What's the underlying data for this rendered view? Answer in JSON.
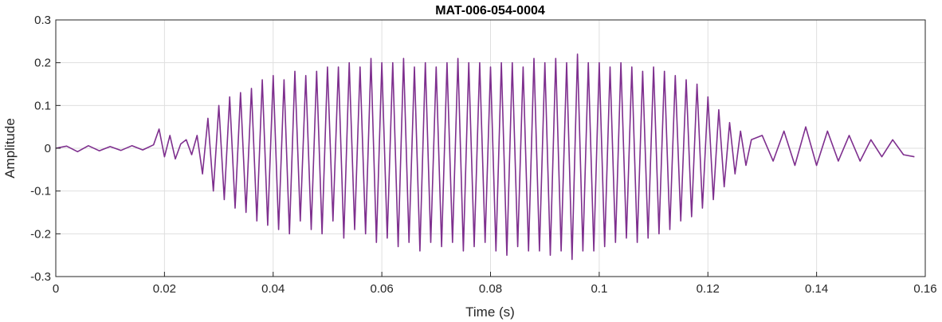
{
  "chart_data": {
    "type": "line",
    "title": "MAT-006-054-0004",
    "xlabel": "Time (s)",
    "ylabel": "Amplitude",
    "xlim": [
      0,
      0.16
    ],
    "ylim": [
      -0.3,
      0.3
    ],
    "x_ticks": [
      0,
      0.02,
      0.04,
      0.06,
      0.08,
      0.1,
      0.12,
      0.14,
      0.16
    ],
    "x_tick_labels": [
      "0",
      "0.02",
      "0.04",
      "0.06",
      "0.08",
      "0.1",
      "0.12",
      "0.14",
      "0.16"
    ],
    "y_ticks": [
      0.3,
      0.2,
      0.1,
      0,
      -0.1,
      -0.2,
      -0.3
    ],
    "y_tick_labels": [
      "0.3",
      "0.2",
      "0.1",
      "0",
      "-0.1",
      "-0.2",
      "-0.3"
    ],
    "grid": true,
    "line_color": "#7E2F8E",
    "series": [
      {
        "x": [
          0,
          0.002,
          0.004,
          0.006,
          0.008,
          0.01,
          0.012,
          0.014,
          0.016,
          0.018,
          0.019,
          0.02,
          0.021,
          0.022,
          0.023,
          0.024,
          0.025,
          0.026,
          0.027,
          0.028,
          0.029,
          0.03,
          0.031,
          0.032,
          0.033,
          0.034,
          0.035,
          0.036,
          0.037,
          0.038,
          0.039,
          0.04,
          0.041,
          0.042,
          0.043,
          0.044,
          0.045,
          0.046,
          0.047,
          0.048,
          0.049,
          0.05,
          0.051,
          0.052,
          0.053,
          0.054,
          0.055,
          0.056,
          0.057,
          0.058,
          0.059,
          0.06,
          0.061,
          0.062,
          0.063,
          0.064,
          0.065,
          0.066,
          0.067,
          0.068,
          0.069,
          0.07,
          0.071,
          0.072,
          0.073,
          0.074,
          0.075,
          0.076,
          0.077,
          0.078,
          0.079,
          0.08,
          0.081,
          0.082,
          0.083,
          0.084,
          0.085,
          0.086,
          0.087,
          0.088,
          0.089,
          0.09,
          0.091,
          0.092,
          0.093,
          0.094,
          0.095,
          0.096,
          0.097,
          0.098,
          0.099,
          0.1,
          0.101,
          0.102,
          0.103,
          0.104,
          0.105,
          0.106,
          0.107,
          0.108,
          0.109,
          0.11,
          0.111,
          0.112,
          0.113,
          0.114,
          0.115,
          0.116,
          0.117,
          0.118,
          0.119,
          0.12,
          0.121,
          0.122,
          0.123,
          0.124,
          0.125,
          0.126,
          0.127,
          0.128,
          0.13,
          0.132,
          0.134,
          0.136,
          0.138,
          0.14,
          0.142,
          0.144,
          0.146,
          0.148,
          0.15,
          0.152,
          0.154,
          0.156,
          0.158
        ],
        "y": [
          0,
          0.005,
          -0.008,
          0.006,
          -0.006,
          0.004,
          -0.005,
          0.006,
          -0.004,
          0.008,
          0.045,
          -0.02,
          0.03,
          -0.025,
          0.01,
          0.02,
          -0.015,
          0.03,
          -0.06,
          0.07,
          -0.1,
          0.1,
          -0.12,
          0.12,
          -0.14,
          0.13,
          -0.15,
          0.14,
          -0.17,
          0.16,
          -0.18,
          0.17,
          -0.19,
          0.16,
          -0.2,
          0.18,
          -0.17,
          0.17,
          -0.19,
          0.18,
          -0.2,
          0.19,
          -0.17,
          0.19,
          -0.21,
          0.2,
          -0.19,
          0.19,
          -0.2,
          0.21,
          -0.22,
          0.2,
          -0.21,
          0.2,
          -0.23,
          0.21,
          -0.22,
          0.19,
          -0.24,
          0.2,
          -0.22,
          0.19,
          -0.23,
          0.2,
          -0.22,
          0.21,
          -0.24,
          0.2,
          -0.23,
          0.2,
          -0.22,
          0.19,
          -0.24,
          0.2,
          -0.25,
          0.2,
          -0.23,
          0.19,
          -0.24,
          0.21,
          -0.24,
          0.2,
          -0.25,
          0.21,
          -0.24,
          0.2,
          -0.26,
          0.22,
          -0.24,
          0.2,
          -0.24,
          0.2,
          -0.23,
          0.19,
          -0.22,
          0.2,
          -0.21,
          0.19,
          -0.22,
          0.18,
          -0.21,
          0.19,
          -0.2,
          0.18,
          -0.19,
          0.17,
          -0.17,
          0.16,
          -0.16,
          0.15,
          -0.14,
          0.12,
          -0.12,
          0.09,
          -0.09,
          0.06,
          -0.06,
          0.04,
          -0.04,
          0.02,
          0.03,
          -0.03,
          0.04,
          -0.04,
          0.05,
          -0.04,
          0.04,
          -0.03,
          0.03,
          -0.03,
          0.02,
          -0.02,
          0.02,
          -0.015,
          -0.02
        ]
      }
    ]
  }
}
